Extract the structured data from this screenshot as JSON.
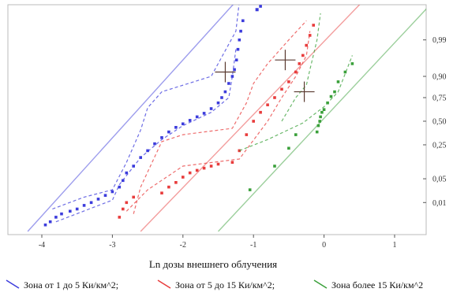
{
  "chart_data": {
    "type": "scatter",
    "title": "",
    "xlabel": "Ln дозы внешнего облучения",
    "ylabel": "",
    "xlim": [
      -4.4,
      1.8
    ],
    "y_scale": "normal-probability",
    "grid": false,
    "legend_position": "bottom",
    "x_ticks": [
      {
        "value": -4,
        "label": "-4"
      },
      {
        "value": -3,
        "label": "-3"
      },
      {
        "value": -2,
        "label": "-2"
      },
      {
        "value": -1,
        "label": "-1"
      },
      {
        "value": 0,
        "label": "0"
      },
      {
        "value": 1,
        "label": "1"
      }
    ],
    "y_ticks": [
      {
        "value": 0.99,
        "label": "0,99"
      },
      {
        "value": 0.9,
        "label": "0,90"
      },
      {
        "value": 0.75,
        "label": "0,75"
      },
      {
        "value": 0.5,
        "label": "0,50"
      },
      {
        "value": 0.25,
        "label": "0,25"
      },
      {
        "value": 0.05,
        "label": "0,05"
      },
      {
        "value": 0.01,
        "label": "0,01"
      }
    ],
    "series": [
      {
        "name": "Зона от 1 до 5 Ки/км^2;",
        "color": "#3c3cdc",
        "points": [
          [
            -3.95,
            0.0015
          ],
          [
            -3.88,
            0.002
          ],
          [
            -3.8,
            0.003
          ],
          [
            -3.72,
            0.004
          ],
          [
            -3.6,
            0.005
          ],
          [
            -3.5,
            0.006
          ],
          [
            -3.4,
            0.008
          ],
          [
            -3.3,
            0.01
          ],
          [
            -3.2,
            0.013
          ],
          [
            -3.1,
            0.017
          ],
          [
            -3.0,
            0.022
          ],
          [
            -2.9,
            0.03
          ],
          [
            -2.85,
            0.045
          ],
          [
            -2.8,
            0.07
          ],
          [
            -2.7,
            0.1
          ],
          [
            -2.6,
            0.15
          ],
          [
            -2.5,
            0.2
          ],
          [
            -2.4,
            0.26
          ],
          [
            -2.3,
            0.32
          ],
          [
            -2.2,
            0.38
          ],
          [
            -2.1,
            0.43
          ],
          [
            -2.0,
            0.47
          ],
          [
            -1.9,
            0.51
          ],
          [
            -1.8,
            0.55
          ],
          [
            -1.7,
            0.59
          ],
          [
            -1.6,
            0.64
          ],
          [
            -1.5,
            0.7
          ],
          [
            -1.45,
            0.75
          ],
          [
            -1.4,
            0.8
          ],
          [
            -1.35,
            0.86
          ],
          [
            -1.3,
            0.9
          ],
          [
            -1.27,
            0.93
          ],
          [
            -1.24,
            0.96
          ],
          [
            -1.22,
            0.98
          ],
          [
            -1.2,
            0.99
          ],
          [
            -1.18,
            0.995
          ],
          [
            -1.15,
            0.998
          ],
          [
            -0.9,
            0.9995
          ]
        ],
        "fit_line": [
          [
            -4.2,
            0.0008
          ],
          [
            -1.2,
            0.9998
          ]
        ],
        "ci_lower": [
          [
            -3.8,
            0.002
          ],
          [
            -3.0,
            0.012
          ],
          [
            -2.9,
            0.035
          ],
          [
            -2.6,
            0.15
          ],
          [
            -2.3,
            0.3
          ],
          [
            -2.0,
            0.45
          ],
          [
            -1.6,
            0.6
          ],
          [
            -1.35,
            0.75
          ],
          [
            -1.3,
            0.9
          ],
          [
            -1.25,
            0.98
          ]
        ],
        "ci_upper": [
          [
            -3.85,
            0.006
          ],
          [
            -3.4,
            0.015
          ],
          [
            -3.0,
            0.025
          ],
          [
            -2.8,
            0.12
          ],
          [
            -2.6,
            0.4
          ],
          [
            -2.5,
            0.65
          ],
          [
            -2.3,
            0.8
          ],
          [
            -1.6,
            0.9
          ],
          [
            -1.25,
            0.995
          ],
          [
            -1.2,
            0.9997
          ]
        ],
        "median_marker": [
          -1.4,
          0.92
        ]
      },
      {
        "name": "Зона от 5 до 15 Ки/км^2;",
        "color": "#e83c3c",
        "points": [
          [
            -2.9,
            0.003
          ],
          [
            -2.85,
            0.006
          ],
          [
            -2.8,
            0.01
          ],
          [
            -2.7,
            0.015
          ],
          [
            -2.3,
            0.02
          ],
          [
            -2.2,
            0.03
          ],
          [
            -2.1,
            0.04
          ],
          [
            -2.0,
            0.055
          ],
          [
            -1.9,
            0.07
          ],
          [
            -1.8,
            0.08
          ],
          [
            -1.7,
            0.09
          ],
          [
            -1.6,
            0.1
          ],
          [
            -1.5,
            0.11
          ],
          [
            -1.3,
            0.12
          ],
          [
            -1.2,
            0.2
          ],
          [
            -1.1,
            0.35
          ],
          [
            -1.0,
            0.5
          ],
          [
            -0.9,
            0.6
          ],
          [
            -0.8,
            0.68
          ],
          [
            -0.7,
            0.75
          ],
          [
            -0.6,
            0.82
          ],
          [
            -0.5,
            0.87
          ],
          [
            -0.4,
            0.92
          ],
          [
            -0.35,
            0.95
          ],
          [
            -0.3,
            0.97
          ],
          [
            -0.25,
            0.985
          ],
          [
            -0.2,
            0.993
          ],
          [
            -0.15,
            0.997
          ]
        ],
        "fit_line": [
          [
            -2.6,
            0.0008
          ],
          [
            0.6,
            0.9998
          ]
        ],
        "ci_lower": [
          [
            -2.8,
            0.005
          ],
          [
            -2.5,
            0.025
          ],
          [
            -2.0,
            0.1
          ],
          [
            -1.2,
            0.14
          ],
          [
            -0.8,
            0.5
          ],
          [
            -0.6,
            0.75
          ],
          [
            -0.4,
            0.9
          ],
          [
            -0.25,
            0.97
          ],
          [
            -0.2,
            0.995
          ]
        ],
        "ci_upper": [
          [
            -2.7,
            0.004
          ],
          [
            -2.6,
            0.03
          ],
          [
            -2.3,
            0.28
          ],
          [
            -2.0,
            0.35
          ],
          [
            -1.3,
            0.42
          ],
          [
            -1.1,
            0.7
          ],
          [
            -1.0,
            0.86
          ],
          [
            -0.8,
            0.95
          ],
          [
            -0.5,
            0.99
          ],
          [
            -0.25,
            0.998
          ]
        ],
        "median_marker": [
          -0.55,
          0.96
        ]
      },
      {
        "name": "Зона более 15 Ки/км^2",
        "color": "#3aa03a",
        "points": [
          [
            -1.05,
            0.025
          ],
          [
            -0.7,
            0.1
          ],
          [
            -0.5,
            0.22
          ],
          [
            -0.4,
            0.35
          ],
          [
            -0.1,
            0.38
          ],
          [
            -0.08,
            0.45
          ],
          [
            -0.06,
            0.5
          ],
          [
            -0.05,
            0.55
          ],
          [
            -0.03,
            0.6
          ],
          [
            0.0,
            0.63
          ],
          [
            0.05,
            0.7
          ],
          [
            0.1,
            0.76
          ],
          [
            0.15,
            0.8
          ],
          [
            0.2,
            0.87
          ],
          [
            0.3,
            0.92
          ],
          [
            0.4,
            0.95
          ]
        ],
        "fit_line": [
          [
            -1.5,
            0.0008
          ],
          [
            1.6,
            0.9998
          ]
        ],
        "ci_lower": [
          [
            -1.2,
            0.2
          ],
          [
            -0.8,
            0.3
          ],
          [
            -0.3,
            0.48
          ],
          [
            0.0,
            0.66
          ],
          [
            0.2,
            0.8
          ],
          [
            0.4,
            0.97
          ]
        ],
        "ci_upper": [
          [
            -0.6,
            0.5
          ],
          [
            -0.4,
            0.75
          ],
          [
            -0.25,
            0.85
          ],
          [
            -0.2,
            0.93
          ],
          [
            -0.1,
            0.99
          ],
          [
            -0.05,
            0.999
          ]
        ],
        "median_marker": [
          -0.28,
          0.8
        ]
      }
    ],
    "outlier_point": {
      "x": -0.95,
      "y": 0.9993,
      "color": "#3c3cdc"
    }
  }
}
